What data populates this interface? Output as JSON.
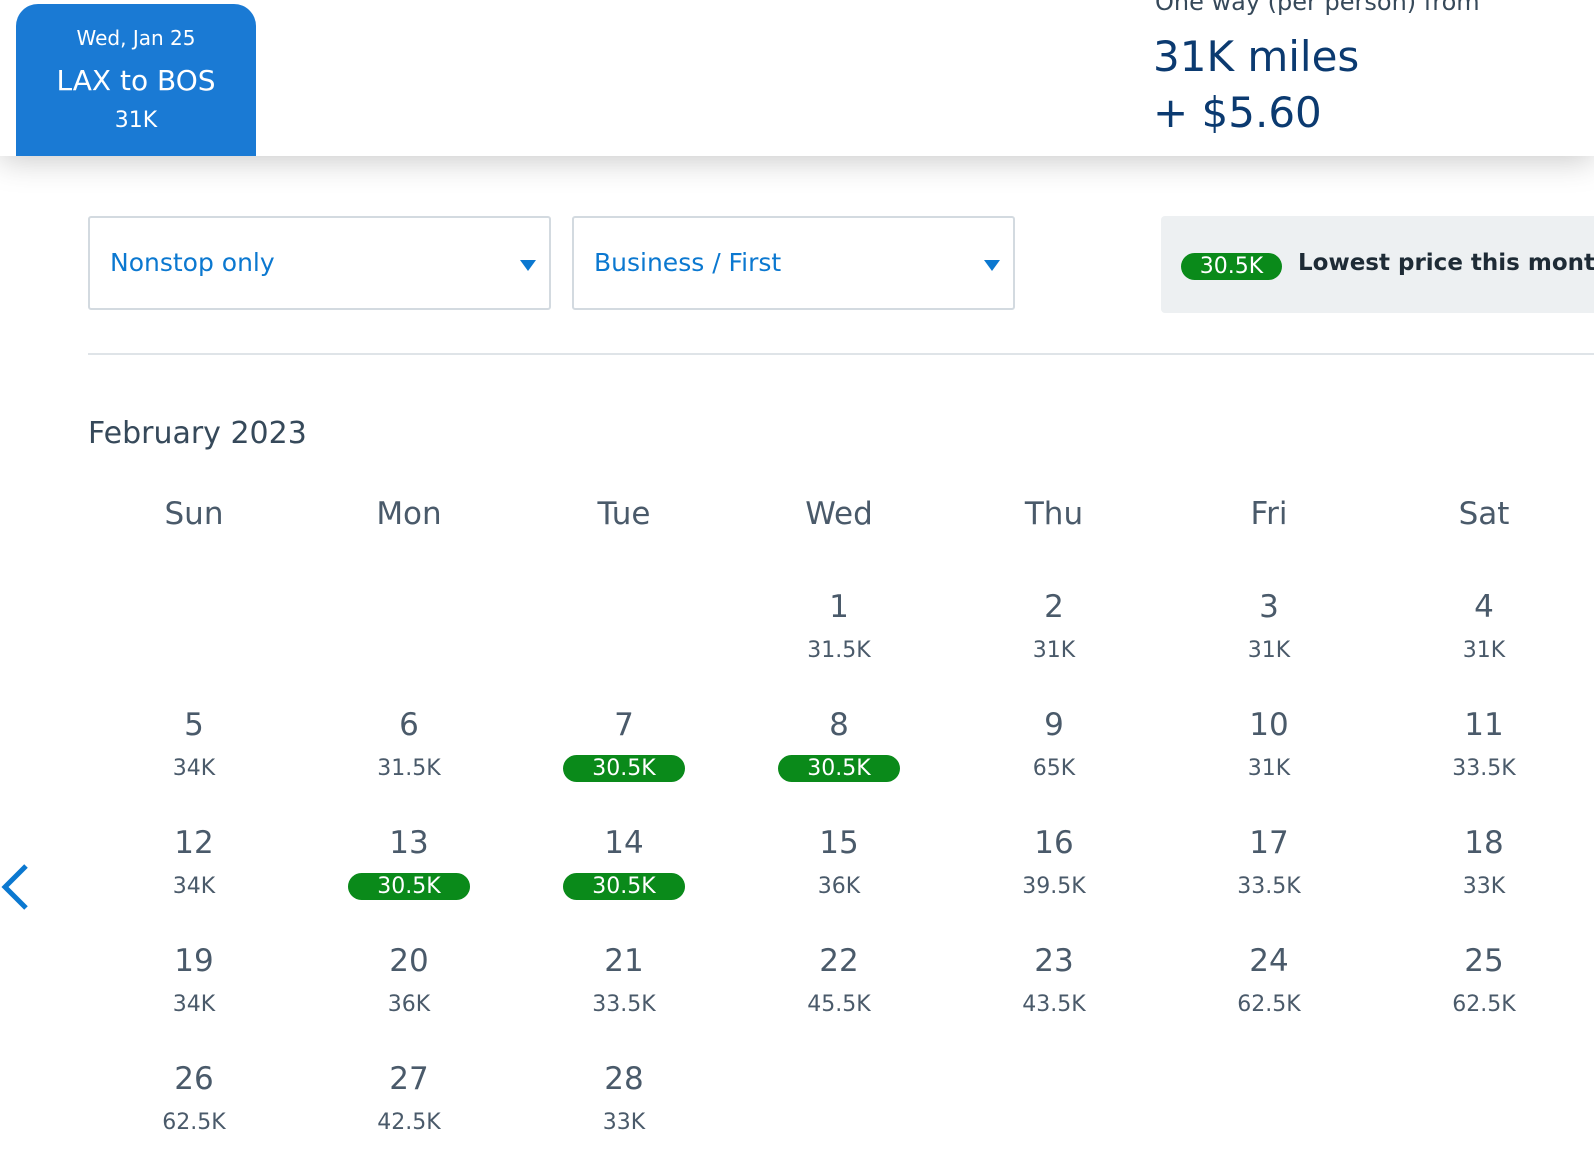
{
  "tab": {
    "date": "Wed, Jan 25",
    "route": "LAX to BOS",
    "price": "31K"
  },
  "fare": {
    "label": "One way (per person) from",
    "miles": "31K miles",
    "cash": "+ $5.60"
  },
  "filters": {
    "stops": "Nonstop only",
    "cabin": "Business / First"
  },
  "legend": {
    "badge": "30.5K",
    "text": "Lowest price this month"
  },
  "calendar": {
    "month": "February 2023",
    "weekdays": [
      "Sun",
      "Mon",
      "Tue",
      "Wed",
      "Thu",
      "Fri",
      "Sat"
    ],
    "weeks": [
      [
        null,
        null,
        null,
        {
          "day": 1,
          "price": "31.5K"
        },
        {
          "day": 2,
          "price": "31K"
        },
        {
          "day": 3,
          "price": "31K"
        },
        {
          "day": 4,
          "price": "31K"
        }
      ],
      [
        {
          "day": 5,
          "price": "34K"
        },
        {
          "day": 6,
          "price": "31.5K"
        },
        {
          "day": 7,
          "price": "30.5K",
          "lowest": true
        },
        {
          "day": 8,
          "price": "30.5K",
          "lowest": true
        },
        {
          "day": 9,
          "price": "65K"
        },
        {
          "day": 10,
          "price": "31K"
        },
        {
          "day": 11,
          "price": "33.5K"
        }
      ],
      [
        {
          "day": 12,
          "price": "34K"
        },
        {
          "day": 13,
          "price": "30.5K",
          "lowest": true
        },
        {
          "day": 14,
          "price": "30.5K",
          "lowest": true
        },
        {
          "day": 15,
          "price": "36K"
        },
        {
          "day": 16,
          "price": "39.5K"
        },
        {
          "day": 17,
          "price": "33.5K"
        },
        {
          "day": 18,
          "price": "33K"
        }
      ],
      [
        {
          "day": 19,
          "price": "34K"
        },
        {
          "day": 20,
          "price": "36K"
        },
        {
          "day": 21,
          "price": "33.5K"
        },
        {
          "day": 22,
          "price": "45.5K"
        },
        {
          "day": 23,
          "price": "43.5K"
        },
        {
          "day": 24,
          "price": "62.5K"
        },
        {
          "day": 25,
          "price": "62.5K"
        }
      ],
      [
        {
          "day": 26,
          "price": "62.5K"
        },
        {
          "day": 27,
          "price": "42.5K"
        },
        {
          "day": 28,
          "price": "33K"
        }
      ]
    ]
  }
}
